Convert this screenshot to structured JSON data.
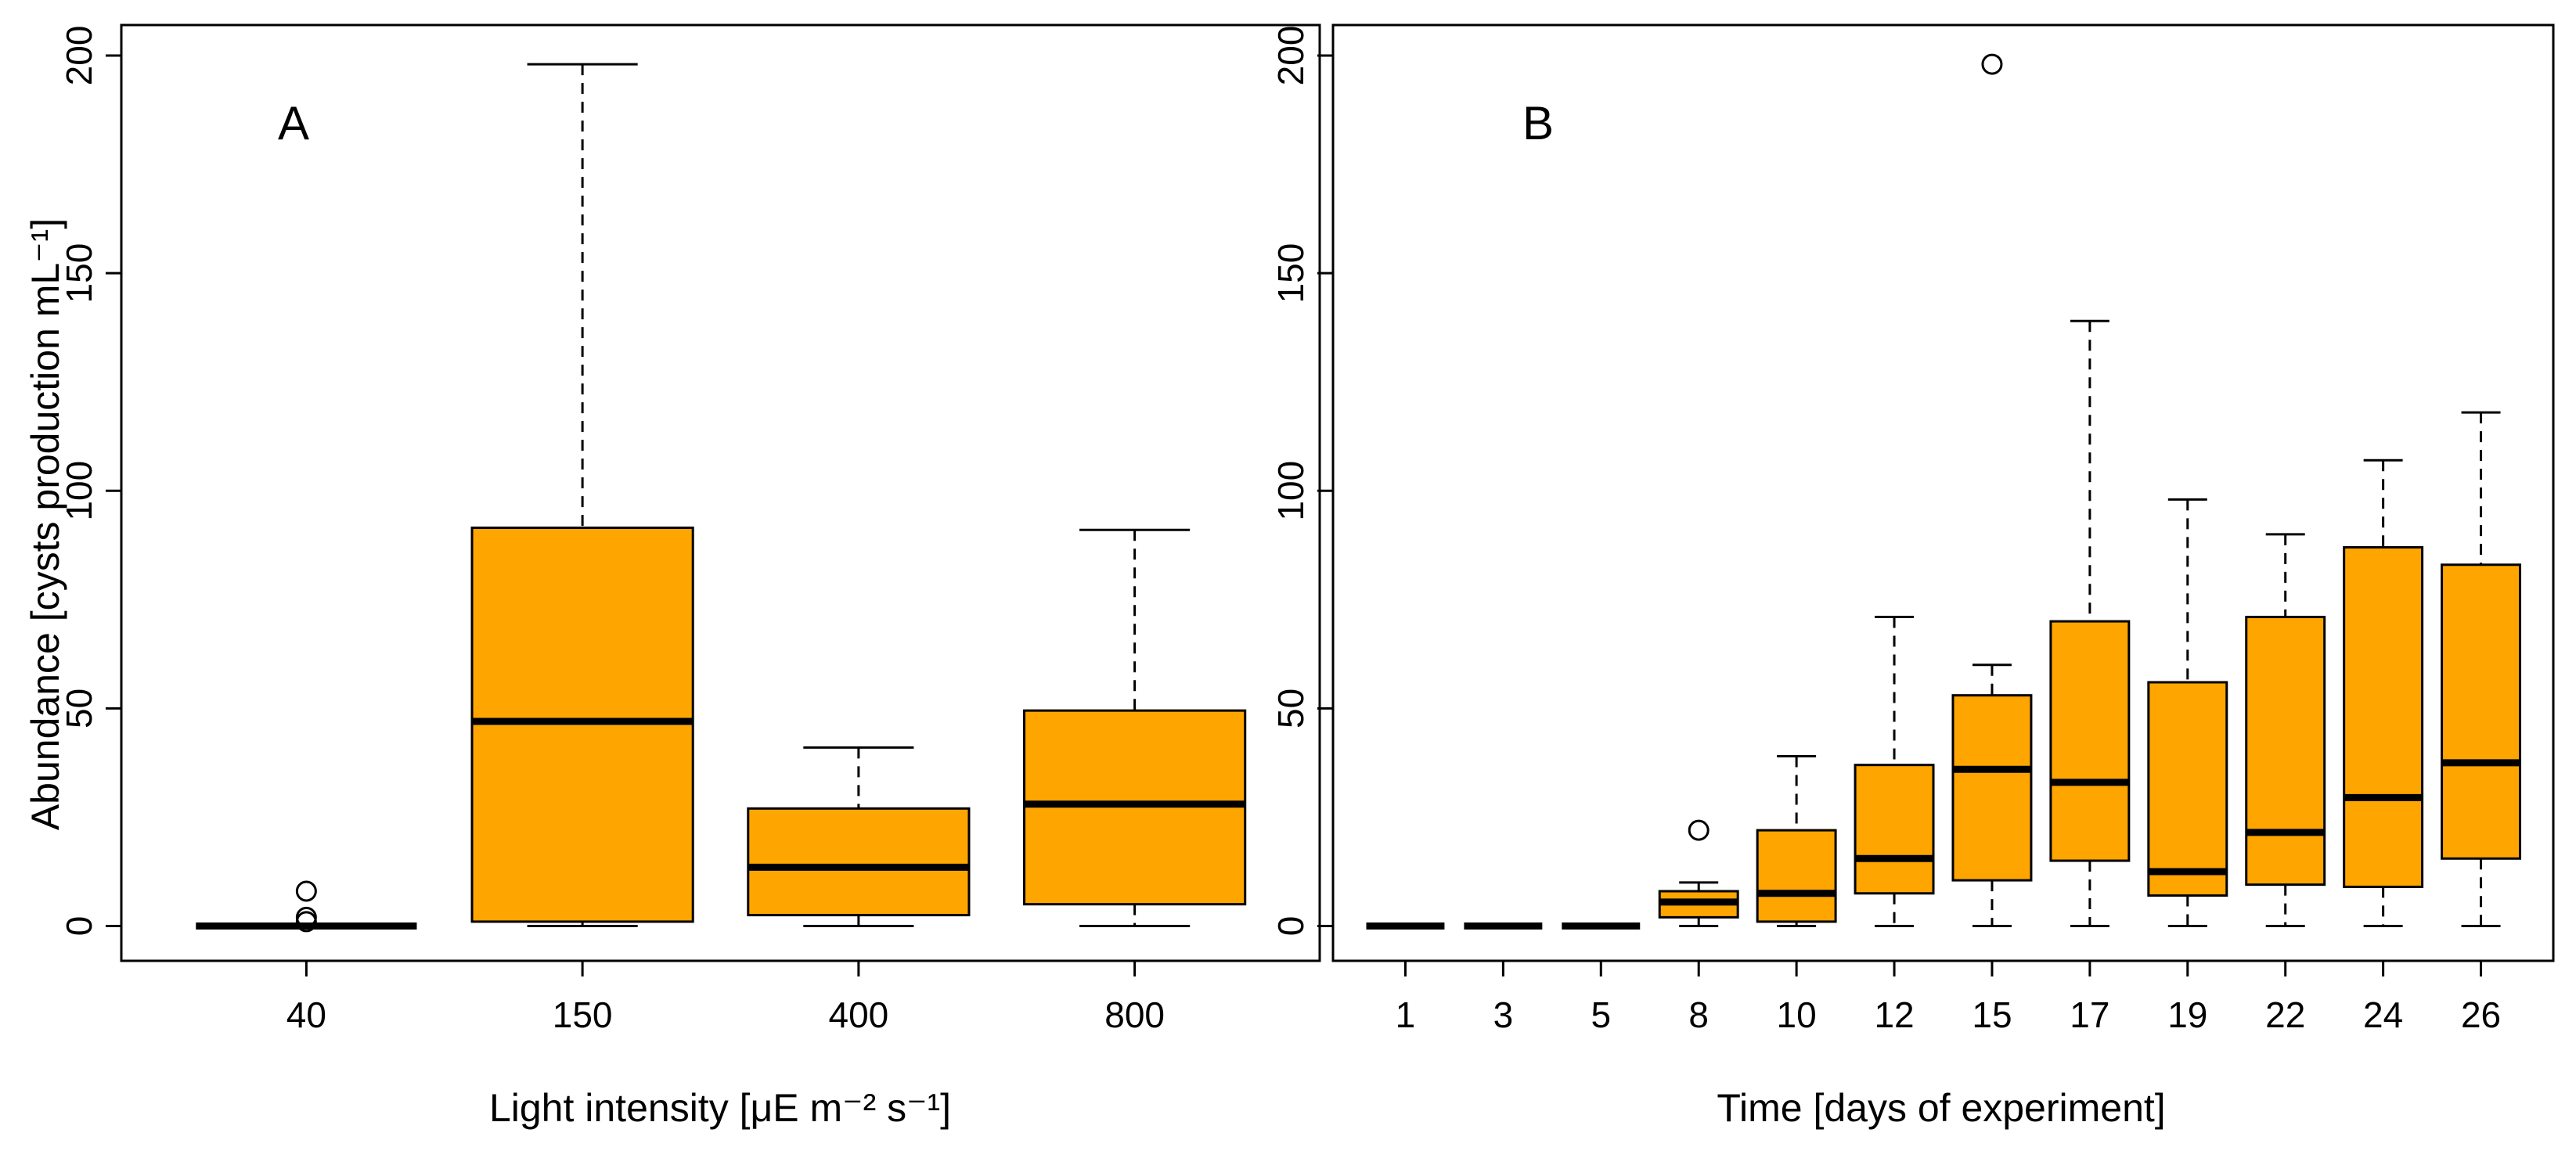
{
  "colors": {
    "box_fill": "#FFA500",
    "stroke": "#000000",
    "background": "#FFFFFF"
  },
  "chart_data": [
    {
      "type": "box",
      "panel_label": "A",
      "xlabel": "Light intensity [μE m⁻² s⁻¹]",
      "ylabel": "Abundance [cysts production mL⁻¹]",
      "ylim": [
        -8,
        207
      ],
      "yticks": [
        0,
        50,
        100,
        150,
        200
      ],
      "categories": [
        "40",
        "150",
        "400",
        "800"
      ],
      "boxes": [
        {
          "min": 0,
          "q1": 0,
          "median": 0,
          "q3": 0,
          "max": 0,
          "outliers": [
            1,
            2,
            8
          ]
        },
        {
          "min": 0,
          "q1": 1,
          "median": 47,
          "q3": 91.5,
          "max": 198,
          "outliers": []
        },
        {
          "min": 0,
          "q1": 2.5,
          "median": 13.5,
          "q3": 27,
          "max": 41,
          "outliers": []
        },
        {
          "min": 0,
          "q1": 5,
          "median": 28,
          "q3": 49.5,
          "max": 91,
          "outliers": []
        }
      ]
    },
    {
      "type": "box",
      "panel_label": "B",
      "xlabel": "Time [days of experiment]",
      "ylabel": "",
      "ylim": [
        -8,
        207
      ],
      "yticks": [
        0,
        50,
        100,
        150,
        200
      ],
      "categories": [
        "1",
        "3",
        "5",
        "8",
        "10",
        "12",
        "15",
        "17",
        "19",
        "22",
        "24",
        "26"
      ],
      "boxes": [
        {
          "min": 0,
          "q1": 0,
          "median": 0,
          "q3": 0,
          "max": 0,
          "outliers": []
        },
        {
          "min": 0,
          "q1": 0,
          "median": 0,
          "q3": 0,
          "max": 0,
          "outliers": []
        },
        {
          "min": 0,
          "q1": 0,
          "median": 0,
          "q3": 0,
          "max": 0,
          "outliers": []
        },
        {
          "min": 0,
          "q1": 2,
          "median": 5.5,
          "q3": 8,
          "max": 10,
          "outliers": [
            22
          ]
        },
        {
          "min": 0,
          "q1": 1,
          "median": 7.5,
          "q3": 22,
          "max": 39,
          "outliers": []
        },
        {
          "min": 0,
          "q1": 7.5,
          "median": 15.5,
          "q3": 37,
          "max": 71,
          "outliers": []
        },
        {
          "min": 0,
          "q1": 10.5,
          "median": 36,
          "q3": 53,
          "max": 60,
          "outliers": [
            198
          ]
        },
        {
          "min": 0,
          "q1": 15,
          "median": 33,
          "q3": 70,
          "max": 139,
          "outliers": []
        },
        {
          "min": 0,
          "q1": 7,
          "median": 12.5,
          "q3": 56,
          "max": 98,
          "outliers": []
        },
        {
          "min": 0,
          "q1": 9.5,
          "median": 21.5,
          "q3": 71,
          "max": 90,
          "outliers": []
        },
        {
          "min": 0,
          "q1": 9,
          "median": 29.5,
          "q3": 87,
          "max": 107,
          "outliers": []
        },
        {
          "min": 0,
          "q1": 15.5,
          "median": 37.5,
          "q3": 83,
          "max": 118,
          "outliers": []
        }
      ]
    }
  ]
}
